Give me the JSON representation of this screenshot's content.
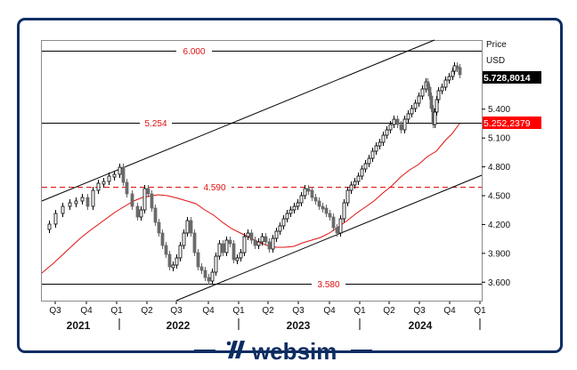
{
  "brand": {
    "name": "websim",
    "color": "#0d2d62"
  },
  "axis": {
    "price_title": "Price",
    "currency": "USD",
    "y_ticks": [
      "5.400",
      "5.100",
      "4.800",
      "4.500",
      "4.200",
      "3.900",
      "3.600"
    ],
    "last_price_label": "5.728,8014",
    "ma_price_label": "5.252,2379",
    "quarters": [
      "Q3",
      "Q4",
      "Q1",
      "Q2",
      "Q3",
      "Q4",
      "Q1",
      "Q2",
      "Q3",
      "Q4",
      "Q1",
      "Q2",
      "Q3",
      "Q4",
      "Q1"
    ],
    "years": [
      "2021",
      "2022",
      "2023",
      "2024"
    ]
  },
  "levels": {
    "l6000": "6.000",
    "l5254": "5.254",
    "l4590": "4.590",
    "l3580": "3.580"
  },
  "colors": {
    "up_fill": "#ffffff",
    "down_fill": "#6b6b6b",
    "ma": "#e01010",
    "last_bg": "#000000",
    "ma_bg": "#ff0000",
    "frame": "#0d2d62"
  },
  "chart_data": {
    "type": "candlestick",
    "title": "",
    "xlabel": "",
    "ylabel": "Price USD",
    "ylim": [
      3.45,
      6.1
    ],
    "x_ticks": [
      "Q3 2021",
      "Q4 2021",
      "Q1 2022",
      "Q2 2022",
      "Q3 2022",
      "Q4 2022",
      "Q1 2023",
      "Q2 2023",
      "Q3 2023",
      "Q4 2023",
      "Q1 2024",
      "Q2 2024",
      "Q3 2024",
      "Q4 2024",
      "Q1 2025"
    ],
    "y_ticks": [
      3.6,
      3.9,
      4.2,
      4.5,
      4.8,
      5.1,
      5.4
    ],
    "horizontal_levels": [
      {
        "value": 6.0,
        "style": "solid",
        "label": "6.000"
      },
      {
        "value": 5.254,
        "style": "solid",
        "label": "5.254"
      },
      {
        "value": 4.59,
        "style": "dashed-red",
        "label": "4.590"
      },
      {
        "value": 3.58,
        "style": "solid",
        "label": "3.580"
      }
    ],
    "trend_channel": {
      "upper": [
        {
          "x": "Q3 2021 start",
          "y": 4.43
        },
        {
          "x": "Q3 2024",
          "y": 6.1
        }
      ],
      "lower": [
        {
          "x": "Q3 2022",
          "y": 3.45
        },
        {
          "x": "Q1 2025",
          "y": 4.68
        }
      ]
    },
    "moving_average": {
      "name": "MA",
      "last_value": 5.2522379,
      "path": [
        [
          46,
          3.64
        ],
        [
          100,
          4.05
        ],
        [
          150,
          4.35
        ],
        [
          175,
          4.43
        ],
        [
          200,
          4.42
        ],
        [
          230,
          4.3
        ],
        [
          260,
          4.16
        ],
        [
          300,
          4.08
        ],
        [
          340,
          4.13
        ],
        [
          380,
          4.28
        ],
        [
          420,
          4.55
        ],
        [
          460,
          4.85
        ],
        [
          500,
          5.1
        ],
        [
          516,
          5.25
        ]
      ]
    },
    "last_close": 5.7288014,
    "series_approx": [
      [
        "2021-07",
        4.17
      ],
      [
        "2021-08",
        4.4
      ],
      [
        "2021-09",
        4.52
      ],
      [
        "2021-10",
        4.58
      ],
      [
        "2021-11",
        4.66
      ],
      [
        "2021-12",
        4.72
      ],
      [
        "2022-01",
        4.78
      ],
      [
        "2022-02",
        4.4
      ],
      [
        "2022-03",
        4.55
      ],
      [
        "2022-04",
        4.15
      ],
      [
        "2022-05",
        4.0
      ],
      [
        "2022-06",
        3.8
      ],
      [
        "2022-07",
        4.1
      ],
      [
        "2022-08",
        4.28
      ],
      [
        "2022-09",
        3.7
      ],
      [
        "2022-10",
        3.6
      ],
      [
        "2022-11",
        4.0
      ],
      [
        "2022-12",
        3.85
      ],
      [
        "2023-01",
        4.05
      ],
      [
        "2023-02",
        4.1
      ],
      [
        "2023-03",
        4.05
      ],
      [
        "2023-04",
        4.2
      ],
      [
        "2023-05",
        4.25
      ],
      [
        "2023-06",
        4.45
      ],
      [
        "2023-07",
        4.58
      ],
      [
        "2023-08",
        4.5
      ],
      [
        "2023-09",
        4.3
      ],
      [
        "2023-10",
        4.15
      ],
      [
        "2023-11",
        4.6
      ],
      [
        "2023-12",
        4.78
      ],
      [
        "2024-01",
        4.9
      ],
      [
        "2024-02",
        5.1
      ],
      [
        "2024-03",
        5.25
      ],
      [
        "2024-04",
        5.05
      ],
      [
        "2024-05",
        5.3
      ],
      [
        "2024-06",
        5.48
      ],
      [
        "2024-07",
        5.6
      ],
      [
        "2024-08",
        5.3
      ],
      [
        "2024-09",
        5.65
      ],
      [
        "2024-10",
        5.8
      ],
      [
        "2024-11",
        5.72
      ]
    ]
  }
}
